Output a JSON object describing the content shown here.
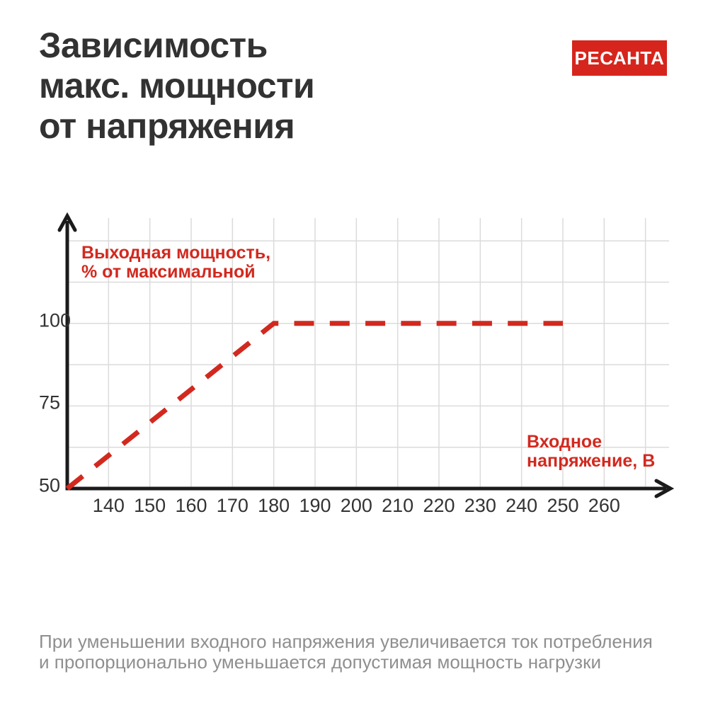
{
  "header": {
    "title_lines": [
      "Зависимость",
      "макс. мощности",
      "от напряжения"
    ],
    "logo_text": "РЕСАНТА",
    "logo_bg": "#d6251c",
    "logo_color": "#ffffff"
  },
  "caption": {
    "lines": [
      "При уменьшении входного напряжения увеличивается ток потребления",
      "и пропорционально уменьшается допустимая мощность нагрузки"
    ]
  },
  "chart_data": {
    "type": "line",
    "title": "Зависимость макс. мощности от напряжения",
    "ylabel": "Выходная мощность, % от максимальной",
    "ylabel_lines": [
      "Выходная мощность,",
      "% от максимальной"
    ],
    "xlabel": "Входное напряжение, В",
    "xlabel_lines": [
      "Входное",
      "напряжение, В"
    ],
    "x_ticks": [
      140,
      150,
      160,
      170,
      180,
      190,
      200,
      210,
      220,
      230,
      240,
      250,
      260
    ],
    "x_gridlines": [
      140,
      150,
      160,
      170,
      180,
      190,
      200,
      210,
      220,
      230,
      240,
      250,
      260,
      270
    ],
    "y_ticks": [
      100,
      75,
      50
    ],
    "y_gridlines": [
      62.5,
      75,
      87.5,
      100,
      112.5,
      125
    ],
    "xlim": [
      130,
      275
    ],
    "ylim": [
      50,
      132
    ],
    "grid": true,
    "legend": "none",
    "series": [
      {
        "name": "output-power-percent",
        "dashed": true,
        "color": "#d2291f",
        "points": [
          [
            130,
            50
          ],
          [
            180,
            100
          ],
          [
            250,
            100
          ]
        ]
      }
    ],
    "colors": {
      "grid": "#dbdbdb",
      "axis": "#1b1b1b",
      "tick_text": "#333333",
      "accent": "#d2291f"
    }
  }
}
